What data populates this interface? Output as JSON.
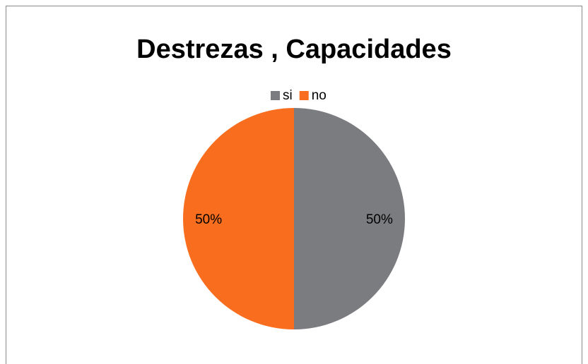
{
  "chart_data": {
    "type": "pie",
    "title": "Destrezas , Capacidades",
    "categories": [
      "si",
      "no"
    ],
    "values": [
      50,
      50
    ],
    "value_labels": [
      "50%",
      "50%"
    ],
    "colors": [
      "#7b7c7f",
      "#f96d1e"
    ],
    "legend": "top"
  }
}
